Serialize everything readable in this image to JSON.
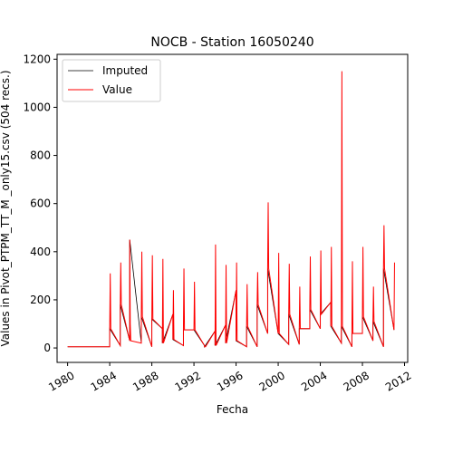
{
  "chart_data": {
    "type": "line",
    "title": "NOCB - Station 16050240",
    "xlabel": "Fecha",
    "ylabel": "Values in Pivot_PTPM_TT_M _only15.csv (504 recs.)",
    "xlim": [
      1979,
      2012.3
    ],
    "ylim": [
      -60,
      1220
    ],
    "x_ticks": [
      1980,
      1984,
      1988,
      1992,
      1996,
      2000,
      2004,
      2008,
      2012
    ],
    "y_ticks": [
      0,
      200,
      400,
      600,
      800,
      1000,
      1200
    ],
    "legend": {
      "placement": "top-left",
      "entries": [
        "Imputed",
        "Value"
      ]
    },
    "series": [
      {
        "name": "Imputed",
        "color": "#000000",
        "x": [
          1980.0,
          1984.0,
          1984.0,
          1985.0,
          1985.0,
          1985.9,
          1985.9,
          1987.0,
          1987.0,
          1988.0,
          1988.0,
          1989.0,
          1989.0,
          1990.0,
          1990.0,
          1991.0,
          1991.0,
          1992.0,
          1992.0,
          1993.0,
          1993.0,
          1994.0,
          1994.0,
          1995.0,
          1995.0,
          1996.0,
          1996.0,
          1997.0,
          1997.0,
          1998.0,
          1998.0,
          1999.0,
          1999.0,
          2000.0,
          2000.0,
          2001.0,
          2001.0,
          2002.0,
          2002.0,
          2003.0,
          2003.0,
          2004.0,
          2004.0,
          2005.0,
          2005.0,
          2006.0,
          2006.0,
          2007.0,
          2007.0,
          2008.0,
          2008.0,
          2009.0,
          2009.0,
          2010.0,
          2010.0,
          2011.0
        ],
        "y": [
          5,
          5,
          80,
          10,
          180,
          30,
          450,
          20,
          130,
          5,
          120,
          80,
          20,
          140,
          35,
          10,
          75,
          75,
          75,
          10,
          5,
          70,
          10,
          95,
          20,
          240,
          30,
          5,
          90,
          5,
          180,
          60,
          330,
          60,
          60,
          15,
          140,
          15,
          80,
          80,
          160,
          80,
          140,
          190,
          90,
          20,
          90,
          5,
          60,
          60,
          130,
          30,
          110,
          5,
          330,
          75
        ]
      },
      {
        "name": "Value",
        "color": "#ff0000",
        "x": [
          1980.0,
          1984.0,
          1984.0,
          1984.05,
          1984.1,
          1985.0,
          1985.0,
          1985.05,
          1985.1,
          1985.9,
          1985.9,
          1985.95,
          1986.0,
          1987.0,
          1987.0,
          1987.05,
          1987.1,
          1988.0,
          1988.0,
          1988.05,
          1988.1,
          1989.0,
          1989.0,
          1989.05,
          1989.1,
          1990.0,
          1990.0,
          1990.05,
          1990.1,
          1991.0,
          1991.0,
          1991.05,
          1991.1,
          1992.0,
          1992.0,
          1992.05,
          1992.1,
          1993.0,
          1993.0,
          1993.05,
          1993.1,
          1994.0,
          1994.0,
          1994.05,
          1994.1,
          1995.0,
          1995.0,
          1995.05,
          1995.1,
          1996.0,
          1996.0,
          1996.05,
          1996.1,
          1997.0,
          1997.0,
          1997.05,
          1997.1,
          1998.0,
          1998.0,
          1998.05,
          1998.1,
          1999.0,
          1999.0,
          1999.05,
          1999.1,
          2000.0,
          2000.0,
          2000.05,
          2000.1,
          2001.0,
          2001.0,
          2001.05,
          2001.1,
          2002.0,
          2002.0,
          2002.05,
          2002.1,
          2003.0,
          2003.0,
          2003.05,
          2003.1,
          2004.0,
          2004.0,
          2004.05,
          2004.1,
          2005.0,
          2005.0,
          2005.05,
          2005.1,
          2006.0,
          2006.0,
          2006.05,
          2006.1,
          2007.0,
          2007.0,
          2007.05,
          2007.1,
          2008.0,
          2008.0,
          2008.05,
          2008.1,
          2009.0,
          2009.0,
          2009.05,
          2009.1,
          2010.0,
          2010.0,
          2010.05,
          2010.1,
          2011.0,
          2011.05
        ],
        "y": [
          5,
          5,
          80,
          310,
          80,
          10,
          180,
          355,
          180,
          30,
          450,
          100,
          30,
          20,
          130,
          400,
          130,
          5,
          120,
          385,
          120,
          80,
          20,
          370,
          20,
          140,
          35,
          240,
          35,
          10,
          75,
          330,
          75,
          75,
          75,
          275,
          75,
          10,
          5,
          5,
          5,
          70,
          10,
          430,
          10,
          95,
          20,
          345,
          20,
          240,
          30,
          355,
          30,
          5,
          90,
          265,
          90,
          5,
          180,
          315,
          180,
          60,
          330,
          605,
          330,
          60,
          60,
          395,
          60,
          15,
          140,
          350,
          140,
          15,
          80,
          255,
          80,
          80,
          160,
          380,
          160,
          80,
          140,
          405,
          140,
          190,
          90,
          420,
          90,
          20,
          90,
          1150,
          90,
          5,
          60,
          360,
          60,
          60,
          130,
          420,
          130,
          30,
          110,
          255,
          110,
          5,
          330,
          510,
          330,
          75,
          355
        ]
      }
    ]
  }
}
